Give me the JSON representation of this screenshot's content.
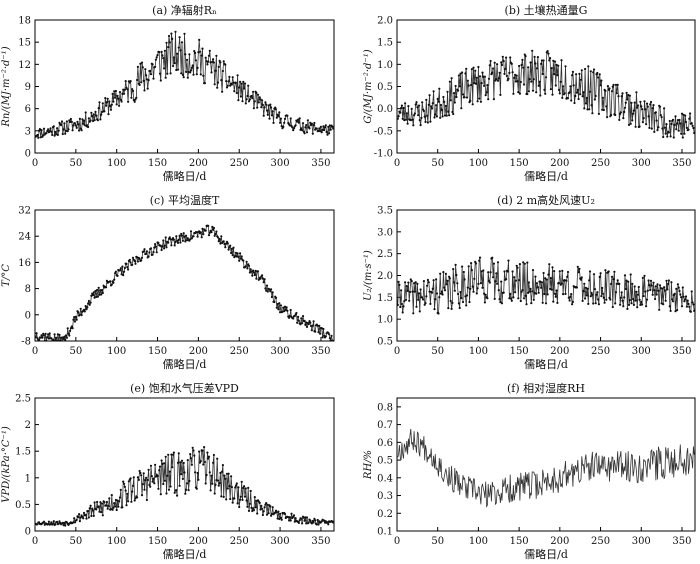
{
  "chart_data": [
    {
      "id": "a",
      "type": "line",
      "title": "(a) 净辐射Rₙ",
      "xlabel": "儒略日/d",
      "ylabel": "Rn/(MJ·m⁻²·d⁻¹)",
      "xlim": [
        0,
        366
      ],
      "ylim": [
        0,
        18
      ],
      "xticks": [
        0,
        50,
        100,
        150,
        200,
        250,
        300,
        350
      ],
      "yticks": [
        0,
        3,
        6,
        9,
        12,
        15,
        18
      ],
      "markers": true,
      "base": [
        [
          1,
          2.6
        ],
        [
          30,
          3.3
        ],
        [
          60,
          4.2
        ],
        [
          90,
          6.5
        ],
        [
          120,
          9.0
        ],
        [
          150,
          12.0
        ],
        [
          170,
          13.5
        ],
        [
          190,
          13.0
        ],
        [
          210,
          12.0
        ],
        [
          240,
          9.5
        ],
        [
          270,
          7.0
        ],
        [
          300,
          4.5
        ],
        [
          330,
          3.6
        ],
        [
          366,
          3.0
        ]
      ],
      "noise_amp": [
        [
          0,
          0.7
        ],
        [
          100,
          1.4
        ],
        [
          140,
          3.0
        ],
        [
          200,
          3.0
        ],
        [
          260,
          1.4
        ],
        [
          366,
          0.7
        ]
      ],
      "clamp": [
        0.6,
        17.6
      ],
      "seed": 11
    },
    {
      "id": "b",
      "type": "line",
      "title": "(b) 土壤热通量G",
      "xlabel": "儒略日/d",
      "ylabel": "G/(MJ·m⁻²·d⁻¹)",
      "xlim": [
        0,
        366
      ],
      "ylim": [
        -1.0,
        2.0
      ],
      "xticks": [
        0,
        50,
        100,
        150,
        200,
        250,
        300,
        350
      ],
      "yticks": [
        -1.0,
        -0.5,
        0.0,
        0.5,
        1.0,
        1.5,
        2.0
      ],
      "markers": true,
      "base": [
        [
          1,
          -0.1
        ],
        [
          30,
          -0.1
        ],
        [
          60,
          0.2
        ],
        [
          90,
          0.5
        ],
        [
          120,
          0.7
        ],
        [
          150,
          0.8
        ],
        [
          180,
          0.8
        ],
        [
          210,
          0.7
        ],
        [
          240,
          0.4
        ],
        [
          270,
          0.2
        ],
        [
          300,
          -0.1
        ],
        [
          330,
          -0.3
        ],
        [
          366,
          -0.4
        ]
      ],
      "noise_amp": [
        [
          0,
          0.25
        ],
        [
          80,
          0.45
        ],
        [
          220,
          0.55
        ],
        [
          300,
          0.4
        ],
        [
          366,
          0.3
        ]
      ],
      "clamp": [
        -1.0,
        1.75
      ],
      "seed": 23
    },
    {
      "id": "c",
      "type": "line",
      "title": "(c) 平均温度T",
      "xlabel": "儒略日/d",
      "ylabel": "T/°C",
      "xlim": [
        0,
        366
      ],
      "ylim": [
        -8,
        32
      ],
      "xticks": [
        0,
        50,
        100,
        150,
        200,
        250,
        300,
        350
      ],
      "yticks": [
        -8,
        0,
        8,
        16,
        24,
        32
      ],
      "markers": true,
      "base": [
        [
          1,
          -6
        ],
        [
          20,
          -7
        ],
        [
          35,
          -8
        ],
        [
          50,
          -1
        ],
        [
          70,
          5
        ],
        [
          100,
          12
        ],
        [
          130,
          18
        ],
        [
          160,
          22
        ],
        [
          190,
          24
        ],
        [
          215,
          26
        ],
        [
          240,
          20
        ],
        [
          260,
          15
        ],
        [
          280,
          10
        ],
        [
          300,
          2
        ],
        [
          320,
          -1
        ],
        [
          345,
          -4
        ],
        [
          366,
          -8
        ]
      ],
      "noise_amp": [
        [
          0,
          1.6
        ],
        [
          366,
          1.6
        ]
      ],
      "clamp": [
        -8,
        31
      ],
      "seed": 37
    },
    {
      "id": "d",
      "type": "line",
      "title": "(d) 2 m高处风速U₂",
      "xlabel": "儒略日/d",
      "ylabel": "U₂/(m·s⁻¹)",
      "xlim": [
        0,
        366
      ],
      "ylim": [
        0.5,
        3.5
      ],
      "xticks": [
        0,
        50,
        100,
        150,
        200,
        250,
        300,
        350
      ],
      "yticks": [
        0.5,
        1.0,
        1.5,
        2.0,
        2.5,
        3.0,
        3.5
      ],
      "markers": true,
      "base": [
        [
          1,
          1.5
        ],
        [
          60,
          1.6
        ],
        [
          90,
          1.9
        ],
        [
          120,
          1.9
        ],
        [
          150,
          1.8
        ],
        [
          200,
          1.8
        ],
        [
          250,
          1.7
        ],
        [
          300,
          1.6
        ],
        [
          366,
          1.5
        ]
      ],
      "noise_amp": [
        [
          0,
          0.35
        ],
        [
          80,
          0.55
        ],
        [
          180,
          0.5
        ],
        [
          366,
          0.35
        ]
      ],
      "clamp": [
        0.7,
        3.5
      ],
      "seed": 41
    },
    {
      "id": "e",
      "type": "line",
      "title": "(e) 饱和水气压差VPD",
      "xlabel": "儒略日/d",
      "ylabel": "VPD/(kPa·°C⁻¹)",
      "xlim": [
        0,
        366
      ],
      "ylim": [
        0,
        2.5
      ],
      "xticks": [
        0,
        50,
        100,
        150,
        200,
        250,
        300,
        350
      ],
      "yticks": [
        0,
        0.5,
        1.0,
        1.5,
        2.0,
        2.5
      ],
      "markers": true,
      "base": [
        [
          1,
          0.15
        ],
        [
          40,
          0.15
        ],
        [
          60,
          0.3
        ],
        [
          90,
          0.5
        ],
        [
          120,
          0.8
        ],
        [
          150,
          1.0
        ],
        [
          180,
          1.1
        ],
        [
          210,
          1.2
        ],
        [
          240,
          0.8
        ],
        [
          270,
          0.5
        ],
        [
          300,
          0.3
        ],
        [
          330,
          0.2
        ],
        [
          366,
          0.15
        ]
      ],
      "noise_amp": [
        [
          0,
          0.03
        ],
        [
          45,
          0.05
        ],
        [
          100,
          0.25
        ],
        [
          180,
          0.45
        ],
        [
          230,
          0.35
        ],
        [
          290,
          0.1
        ],
        [
          366,
          0.04
        ]
      ],
      "clamp": [
        0.05,
        2.45
      ],
      "seed": 53
    },
    {
      "id": "f",
      "type": "line",
      "title": "(f) 相对湿度RH",
      "xlabel": "儒略日/d",
      "ylabel": "RH/%",
      "xlim": [
        0,
        366
      ],
      "ylim": [
        0.1,
        0.85
      ],
      "xticks": [
        0,
        50,
        100,
        150,
        200,
        250,
        300,
        350
      ],
      "yticks": [
        0.1,
        0.2,
        0.3,
        0.4,
        0.5,
        0.6,
        0.7,
        0.8
      ],
      "markers": false,
      "base": [
        [
          1,
          0.55
        ],
        [
          20,
          0.62
        ],
        [
          40,
          0.55
        ],
        [
          60,
          0.42
        ],
        [
          80,
          0.35
        ],
        [
          110,
          0.3
        ],
        [
          140,
          0.34
        ],
        [
          170,
          0.36
        ],
        [
          200,
          0.4
        ],
        [
          230,
          0.45
        ],
        [
          260,
          0.47
        ],
        [
          290,
          0.46
        ],
        [
          320,
          0.48
        ],
        [
          366,
          0.52
        ]
      ],
      "noise_amp": [
        [
          0,
          0.07
        ],
        [
          366,
          0.1
        ]
      ],
      "clamp": [
        0.13,
        0.74
      ],
      "seed": 67
    }
  ]
}
